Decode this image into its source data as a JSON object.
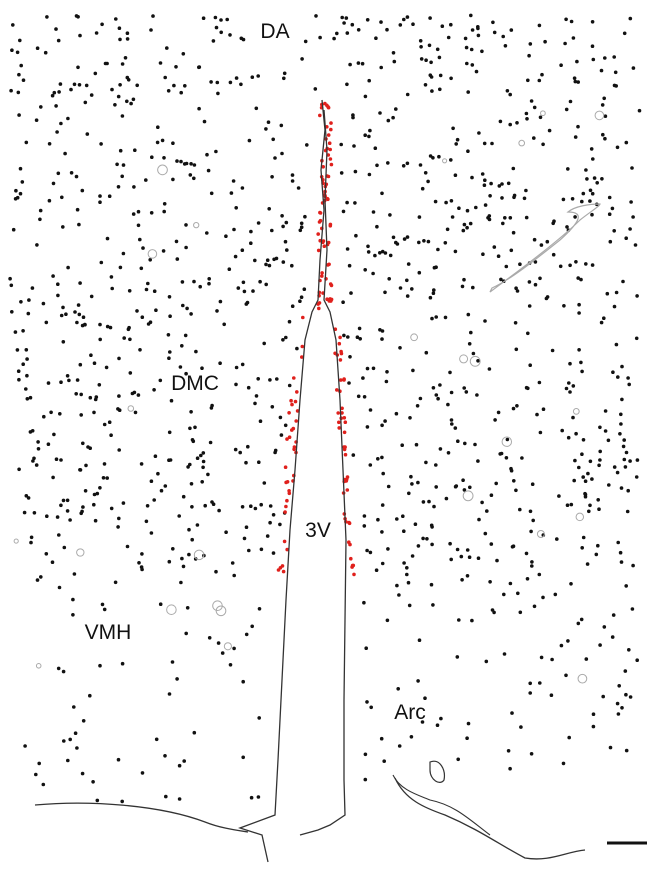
{
  "regions": [
    {
      "label": "DA"
    },
    {
      "label": "DMC"
    },
    {
      "label": "3V"
    },
    {
      "label": "VMH"
    },
    {
      "label": "Arc"
    }
  ]
}
